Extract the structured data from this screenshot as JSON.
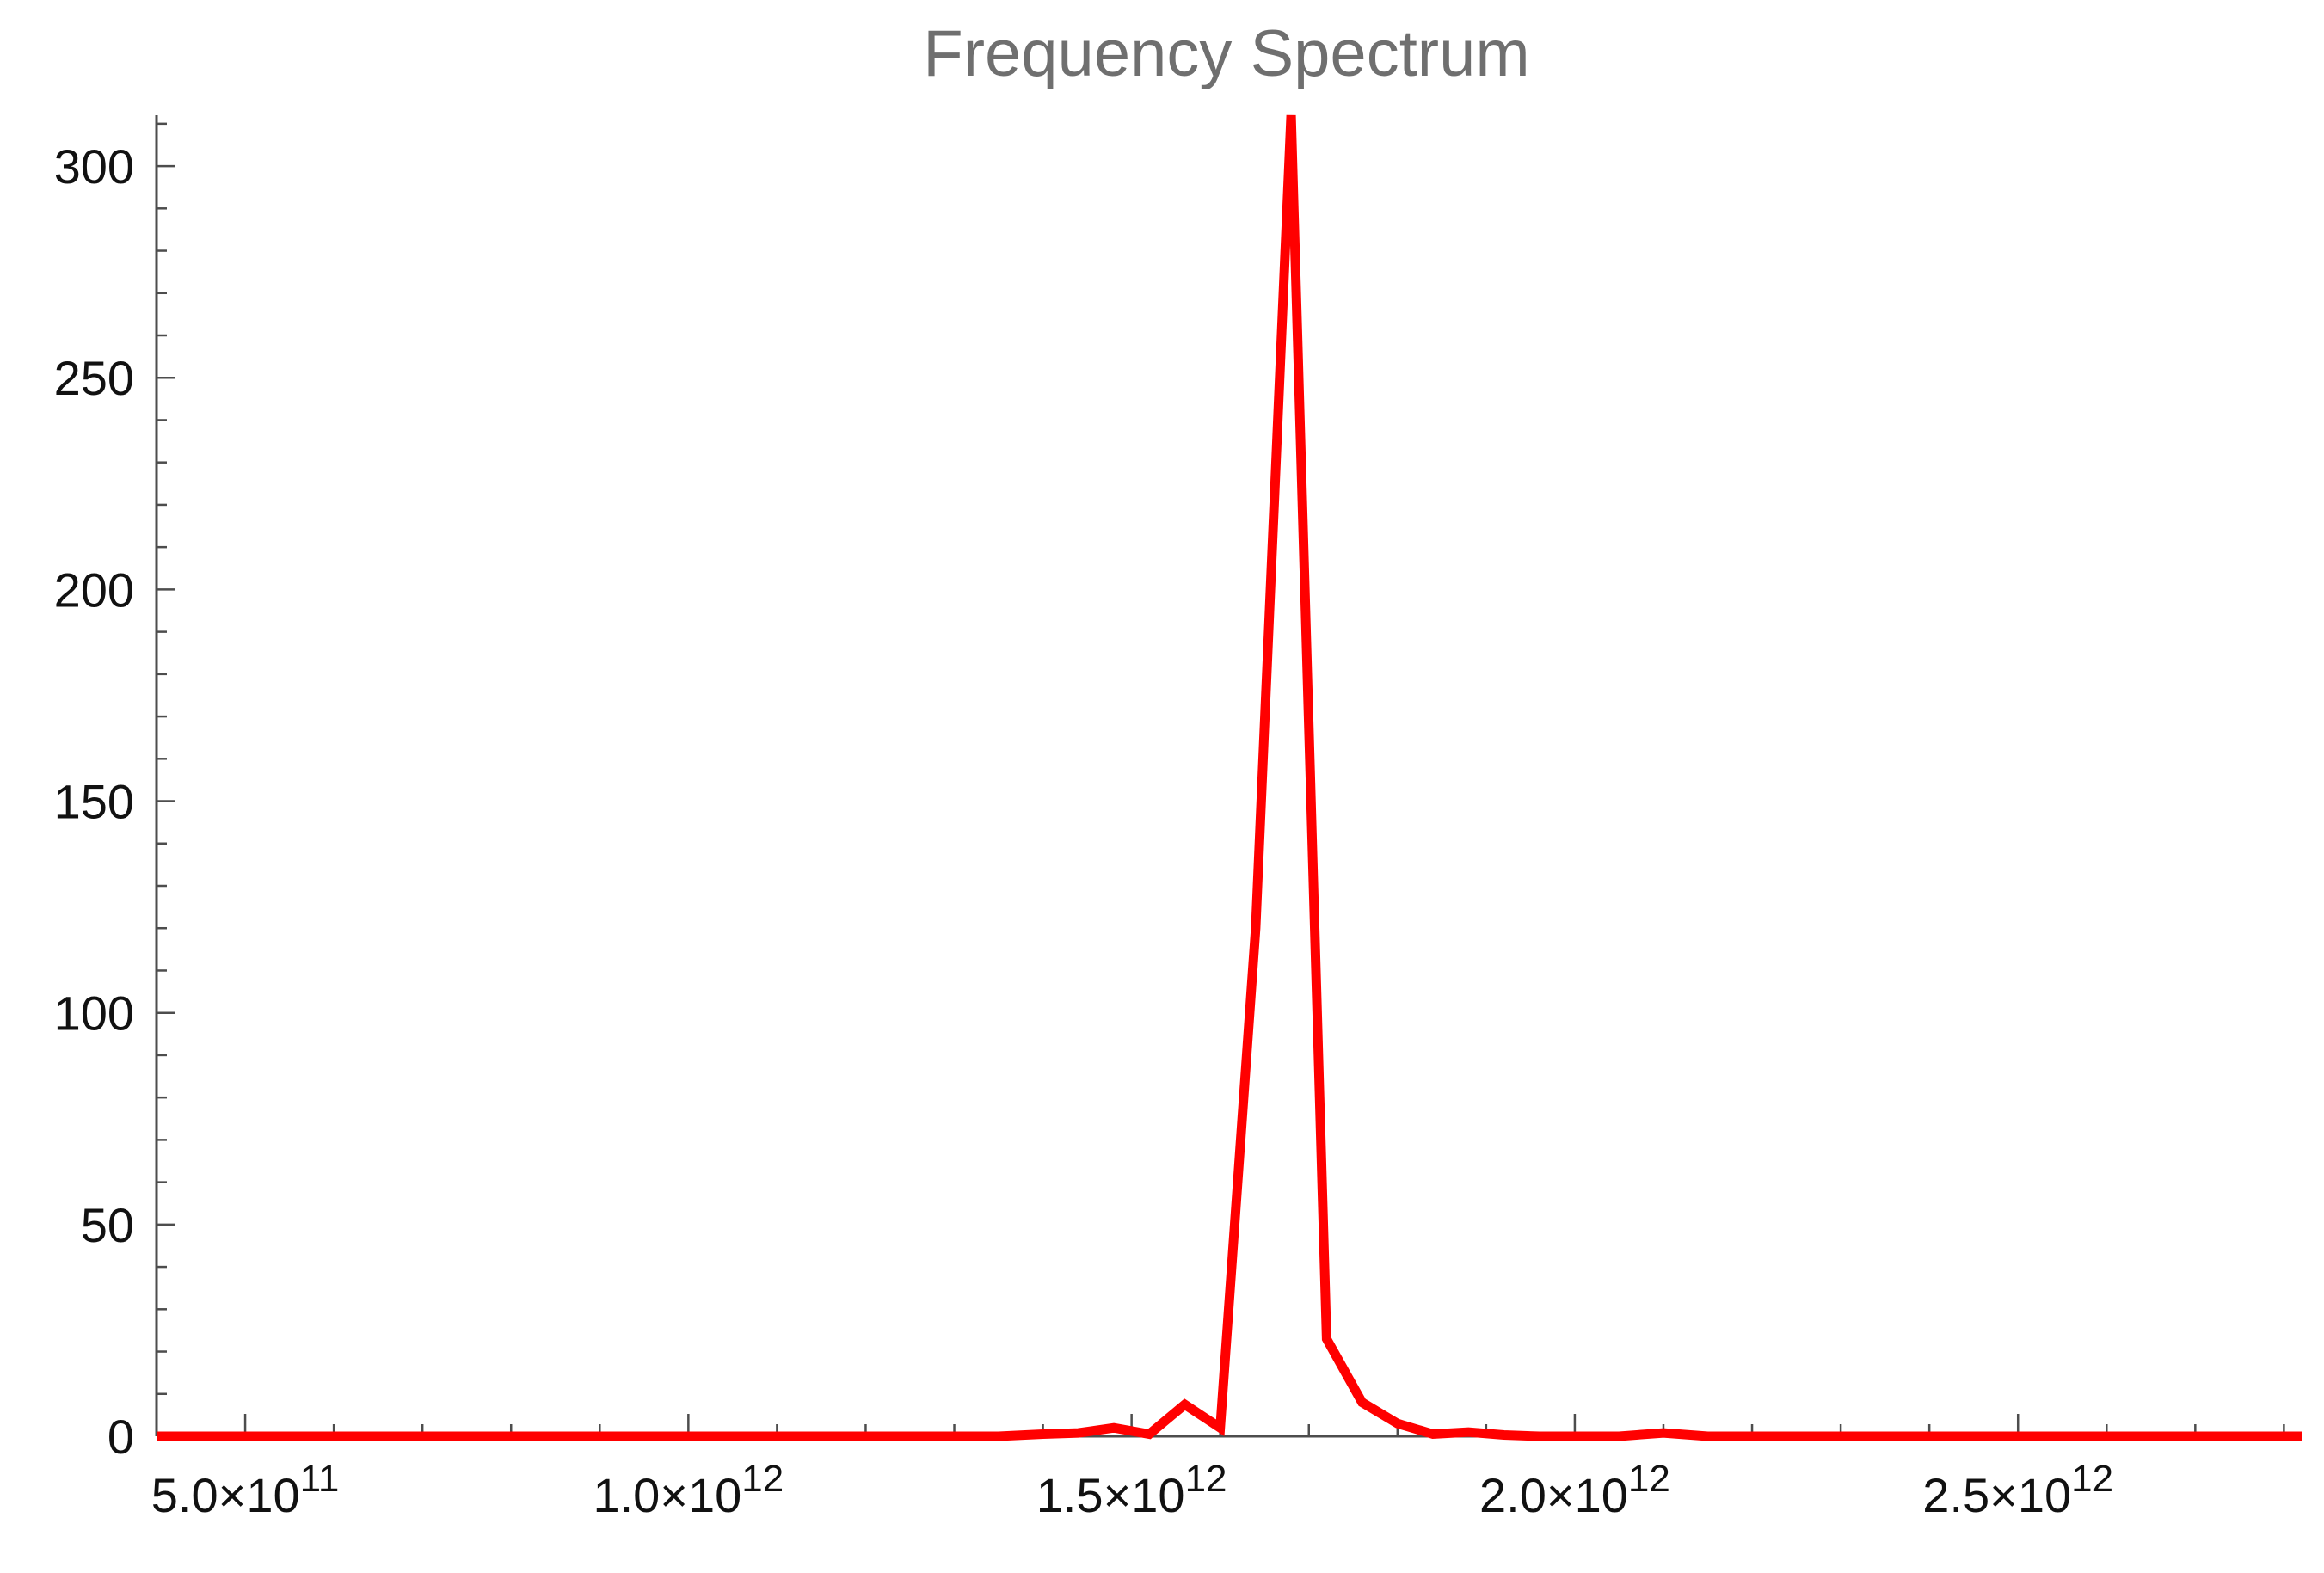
{
  "chart_data": {
    "type": "line",
    "title": "Frequency Spectrum",
    "xlabel": "",
    "ylabel": "",
    "xlim": [
      400000000000,
      2820000000000
    ],
    "ylim": [
      0,
      312
    ],
    "grid": false,
    "legend": "none",
    "colors": {
      "series": "#ff0000",
      "axis": "#4d4d4d",
      "title": "#6f6f6f",
      "tick_label": "#111111"
    },
    "x_ticks": [
      {
        "value": 500000000000,
        "mantissa": "5.0",
        "exponent": "11"
      },
      {
        "value": 1000000000000,
        "mantissa": "1.0",
        "exponent": "12"
      },
      {
        "value": 1500000000000,
        "mantissa": "1.5",
        "exponent": "12"
      },
      {
        "value": 2000000000000,
        "mantissa": "2.0",
        "exponent": "12"
      },
      {
        "value": 2500000000000,
        "mantissa": "2.5",
        "exponent": "12"
      }
    ],
    "y_ticks": [
      0,
      50,
      100,
      150,
      200,
      250,
      300
    ],
    "series": [
      {
        "x": [
          400000000000,
          450000000000,
          500000000000,
          550000000000,
          600000000000,
          650000000000,
          700000000000,
          750000000000,
          800000000000,
          850000000000,
          900000000000,
          950000000000,
          1000000000000,
          1050000000000,
          1100000000000,
          1150000000000,
          1200000000000,
          1250000000000,
          1300000000000,
          1350000000000,
          1400000000000,
          1440000000000,
          1480000000000,
          1520000000000,
          1560000000000,
          1600000000000,
          1640000000000,
          1680000000000,
          1720000000000,
          1760000000000,
          1800000000000,
          1840000000000,
          1880000000000,
          1920000000000,
          1960000000000,
          2000000000000,
          2050000000000,
          2100000000000,
          2150000000000,
          2200000000000,
          2300000000000,
          2400000000000,
          2500000000000,
          2600000000000,
          2700000000000,
          2820000000000
        ],
        "y": [
          0,
          0,
          0,
          0,
          0,
          0,
          0,
          0,
          0,
          0,
          0,
          0,
          0,
          0,
          0,
          0,
          0,
          0,
          0,
          0,
          0.5,
          0.8,
          2,
          0.5,
          7.5,
          2,
          120,
          312,
          23,
          8,
          3,
          0.5,
          1,
          0.3,
          0,
          0,
          0,
          0.8,
          0,
          0,
          0,
          0,
          0,
          0,
          0,
          0
        ]
      }
    ]
  }
}
